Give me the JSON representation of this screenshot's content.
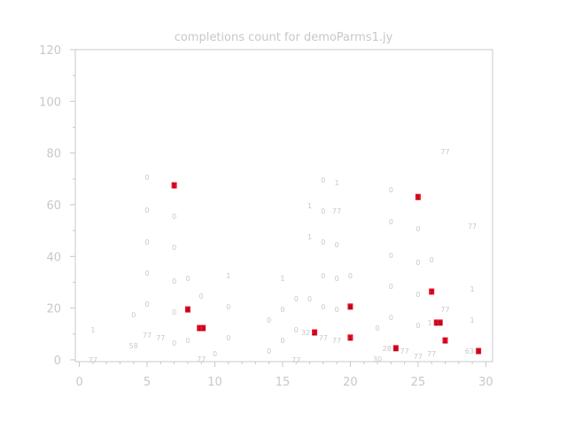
{
  "chart_data": {
    "type": "scatter",
    "title": "completions count for demoParms1.jy",
    "xlabel": "",
    "ylabel": "",
    "xlim": [
      -0.3,
      30.5
    ],
    "ylim": [
      -0.7,
      120
    ],
    "xticks": [
      0,
      5,
      10,
      15,
      20,
      25,
      30
    ],
    "yticks": [
      0,
      20,
      40,
      60,
      80,
      100,
      120
    ],
    "grid": false,
    "colors": {
      "text": "#c8c8c8",
      "axis": "#c8c8c8",
      "highlight": "#e8102a"
    },
    "points": [
      {
        "x": 1,
        "y": 11.6,
        "label": "1"
      },
      {
        "x": 1,
        "y": 0,
        "label": "77"
      },
      {
        "x": 4,
        "y": 17.5,
        "label": "0"
      },
      {
        "x": 4,
        "y": 5.5,
        "label": "58"
      },
      {
        "x": 5,
        "y": 70.6,
        "label": "0"
      },
      {
        "x": 5,
        "y": 58,
        "label": "0"
      },
      {
        "x": 5,
        "y": 45.6,
        "label": "0"
      },
      {
        "x": 5,
        "y": 33.6,
        "label": "0"
      },
      {
        "x": 5,
        "y": 21.6,
        "label": "0"
      },
      {
        "x": 5,
        "y": 9.6,
        "label": "77"
      },
      {
        "x": 6,
        "y": 8.6,
        "label": "77"
      },
      {
        "x": 7,
        "y": 67.5,
        "label": "1",
        "highlight": true
      },
      {
        "x": 7,
        "y": 55.5,
        "label": "0"
      },
      {
        "x": 7,
        "y": 43.5,
        "label": "0"
      },
      {
        "x": 7,
        "y": 30.5,
        "label": "0"
      },
      {
        "x": 7,
        "y": 18.5,
        "label": "0"
      },
      {
        "x": 7,
        "y": 6.5,
        "label": "0"
      },
      {
        "x": 8,
        "y": 31.5,
        "label": "0"
      },
      {
        "x": 8,
        "y": 19.5,
        "label": "4",
        "highlight": true
      },
      {
        "x": 8,
        "y": 7.5,
        "label": "0"
      },
      {
        "x": 9,
        "y": 24.7,
        "label": "0"
      },
      {
        "x": 9,
        "y": 12.3,
        "label": "13",
        "highlight": true
      },
      {
        "x": 9,
        "y": 0.3,
        "label": "77"
      },
      {
        "x": 10,
        "y": 2.4,
        "label": "0"
      },
      {
        "x": 11,
        "y": 32.6,
        "label": "1"
      },
      {
        "x": 11,
        "y": 20.6,
        "label": "0"
      },
      {
        "x": 11,
        "y": 8.6,
        "label": "0"
      },
      {
        "x": 14,
        "y": 15.4,
        "label": "0"
      },
      {
        "x": 14,
        "y": 3.4,
        "label": "0"
      },
      {
        "x": 15,
        "y": 31.5,
        "label": "1"
      },
      {
        "x": 15,
        "y": 19.5,
        "label": "0"
      },
      {
        "x": 15,
        "y": 7.5,
        "label": "0"
      },
      {
        "x": 16,
        "y": 23.7,
        "label": "0"
      },
      {
        "x": 16,
        "y": 11.7,
        "label": "0"
      },
      {
        "x": 16,
        "y": 0,
        "label": "77"
      },
      {
        "x": 17,
        "y": 59.6,
        "label": "1"
      },
      {
        "x": 17,
        "y": 47.6,
        "label": "1"
      },
      {
        "x": 17,
        "y": 23.7,
        "label": "0"
      },
      {
        "x": 16.9,
        "y": 10.6,
        "label": "32"
      },
      {
        "x": 17.1,
        "y": 10.6,
        "label": "2",
        "highlight": true
      },
      {
        "x": 18,
        "y": 69.6,
        "label": "0"
      },
      {
        "x": 18,
        "y": 57.6,
        "label": "0"
      },
      {
        "x": 18,
        "y": 45.6,
        "label": "0"
      },
      {
        "x": 18,
        "y": 32.6,
        "label": "0"
      },
      {
        "x": 18,
        "y": 20.6,
        "label": "0"
      },
      {
        "x": 18,
        "y": 8.6,
        "label": "77"
      },
      {
        "x": 19,
        "y": 68.6,
        "label": "1"
      },
      {
        "x": 19,
        "y": 57.6,
        "label": "77"
      },
      {
        "x": 19,
        "y": 44.6,
        "label": "0"
      },
      {
        "x": 19,
        "y": 31.5,
        "label": "0"
      },
      {
        "x": 19,
        "y": 19.5,
        "label": "0"
      },
      {
        "x": 19,
        "y": 7.5,
        "label": "77"
      },
      {
        "x": 20,
        "y": 32.6,
        "label": "0"
      },
      {
        "x": 20,
        "y": 20.6,
        "label": "8",
        "highlight": true
      },
      {
        "x": 20,
        "y": 8.6,
        "label": "1",
        "highlight": true
      },
      {
        "x": 22,
        "y": 12.3,
        "label": "0"
      },
      {
        "x": 22,
        "y": 0.3,
        "label": "30"
      },
      {
        "x": 23,
        "y": 65.8,
        "label": "0"
      },
      {
        "x": 23,
        "y": 53.5,
        "label": "0"
      },
      {
        "x": 23,
        "y": 40.5,
        "label": "0"
      },
      {
        "x": 23,
        "y": 28.5,
        "label": "0"
      },
      {
        "x": 23,
        "y": 16.5,
        "label": "0"
      },
      {
        "x": 22.9,
        "y": 4.5,
        "label": "28"
      },
      {
        "x": 23.1,
        "y": 4.5,
        "label": "8",
        "highlight": true
      },
      {
        "x": 24,
        "y": 3.4,
        "label": "77"
      },
      {
        "x": 25,
        "y": 63,
        "label": "1",
        "highlight": true
      },
      {
        "x": 25,
        "y": 50.7,
        "label": "0"
      },
      {
        "x": 25,
        "y": 37.7,
        "label": "0"
      },
      {
        "x": 25,
        "y": 25.4,
        "label": "0"
      },
      {
        "x": 25,
        "y": 13.4,
        "label": "0"
      },
      {
        "x": 25,
        "y": 1.4,
        "label": "77"
      },
      {
        "x": 26,
        "y": 38.7,
        "label": "0"
      },
      {
        "x": 26,
        "y": 26.4,
        "label": "7",
        "highlight": true
      },
      {
        "x": 25.9,
        "y": 14.4,
        "label": "1"
      },
      {
        "x": 26.1,
        "y": 14.4,
        "label": "19",
        "highlight": true
      },
      {
        "x": 26,
        "y": 2.4,
        "label": "77"
      },
      {
        "x": 27,
        "y": 80.6,
        "label": "77"
      },
      {
        "x": 27,
        "y": 19.5,
        "label": "77"
      },
      {
        "x": 27,
        "y": 7.5,
        "label": "1",
        "highlight": true
      },
      {
        "x": 29,
        "y": 51.8,
        "label": "77"
      },
      {
        "x": 29,
        "y": 27.4,
        "label": "1"
      },
      {
        "x": 29,
        "y": 15.4,
        "label": "1"
      },
      {
        "x": 28.9,
        "y": 3.4,
        "label": "63"
      },
      {
        "x": 29.2,
        "y": 3.4,
        "label": "3",
        "highlight": true
      }
    ]
  }
}
